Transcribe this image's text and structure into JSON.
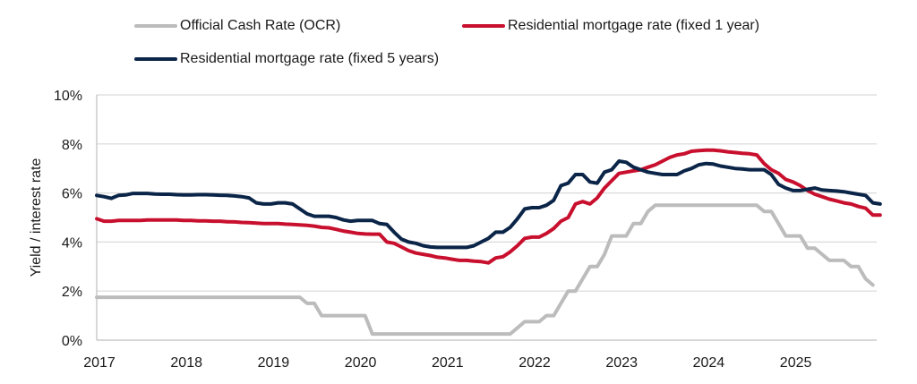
{
  "chart_data": {
    "type": "line",
    "title": "",
    "xlabel": "",
    "ylabel": "Yield / interest rate",
    "ylim": [
      0,
      10
    ],
    "yticks": [
      "0%",
      "2%",
      "4%",
      "6%",
      "8%",
      "10%"
    ],
    "ytick_values": [
      0,
      2,
      4,
      6,
      8,
      10
    ],
    "xlim": [
      2017.0,
      2025.95
    ],
    "xticks": [
      "2017",
      "2018",
      "2019",
      "2020",
      "2021",
      "2022",
      "2023",
      "2024",
      "2025"
    ],
    "xtick_values": [
      2017,
      2018,
      2019,
      2020,
      2021,
      2022,
      2023,
      2024,
      2025
    ],
    "grid": "horizontal",
    "legend_position": "top",
    "x_start": 2017.0,
    "x_step_months": 1,
    "series": [
      {
        "name": "Official Cash Rate (OCR)",
        "color": "#bcbcbc",
        "values": [
          1.75,
          1.75,
          1.75,
          1.75,
          1.75,
          1.75,
          1.75,
          1.75,
          1.75,
          1.75,
          1.75,
          1.75,
          1.75,
          1.75,
          1.75,
          1.75,
          1.75,
          1.75,
          1.75,
          1.75,
          1.75,
          1.75,
          1.75,
          1.75,
          1.75,
          1.75,
          1.75,
          1.75,
          1.75,
          1.5,
          1.5,
          1.0,
          1.0,
          1.0,
          1.0,
          1.0,
          1.0,
          1.0,
          0.25,
          0.25,
          0.25,
          0.25,
          0.25,
          0.25,
          0.25,
          0.25,
          0.25,
          0.25,
          0.25,
          0.25,
          0.25,
          0.25,
          0.25,
          0.25,
          0.25,
          0.25,
          0.25,
          0.25,
          0.5,
          0.75,
          0.75,
          0.75,
          1.0,
          1.0,
          1.5,
          2.0,
          2.0,
          2.5,
          3.0,
          3.0,
          3.5,
          4.25,
          4.25,
          4.25,
          4.75,
          4.75,
          5.25,
          5.5,
          5.5,
          5.5,
          5.5,
          5.5,
          5.5,
          5.5,
          5.5,
          5.5,
          5.5,
          5.5,
          5.5,
          5.5,
          5.5,
          5.5,
          5.25,
          5.25,
          4.75,
          4.25,
          4.25,
          4.25,
          3.75,
          3.75,
          3.5,
          3.25,
          3.25,
          3.25,
          3.0,
          3.0,
          2.5,
          2.25
        ]
      },
      {
        "name": "Residential mortgage rate (fixed 1 year)",
        "color": "#c8102e",
        "values": [
          4.95,
          4.85,
          4.85,
          4.88,
          4.88,
          4.88,
          4.88,
          4.9,
          4.9,
          4.9,
          4.9,
          4.9,
          4.88,
          4.88,
          4.86,
          4.86,
          4.85,
          4.85,
          4.83,
          4.82,
          4.8,
          4.79,
          4.77,
          4.75,
          4.75,
          4.75,
          4.73,
          4.72,
          4.7,
          4.68,
          4.65,
          4.6,
          4.58,
          4.52,
          4.45,
          4.4,
          4.35,
          4.33,
          4.32,
          4.32,
          4.0,
          3.95,
          3.8,
          3.65,
          3.55,
          3.5,
          3.45,
          3.38,
          3.35,
          3.3,
          3.25,
          3.25,
          3.22,
          3.2,
          3.15,
          3.35,
          3.4,
          3.6,
          3.85,
          4.15,
          4.2,
          4.2,
          4.35,
          4.55,
          4.85,
          5.0,
          5.55,
          5.65,
          5.55,
          5.8,
          6.2,
          6.5,
          6.8,
          6.85,
          6.9,
          6.95,
          7.05,
          7.15,
          7.3,
          7.45,
          7.55,
          7.6,
          7.7,
          7.73,
          7.75,
          7.75,
          7.72,
          7.68,
          7.65,
          7.62,
          7.6,
          7.55,
          7.2,
          6.95,
          6.8,
          6.55,
          6.45,
          6.3,
          6.1,
          5.95,
          5.85,
          5.75,
          5.68,
          5.6,
          5.55,
          5.45,
          5.38,
          5.1,
          5.1
        ]
      },
      {
        "name": "Residential mortgage rate (fixed 5 years)",
        "color": "#0b2548",
        "values": [
          5.9,
          5.85,
          5.78,
          5.9,
          5.92,
          5.98,
          5.98,
          5.98,
          5.96,
          5.95,
          5.95,
          5.93,
          5.92,
          5.92,
          5.93,
          5.93,
          5.92,
          5.91,
          5.9,
          5.88,
          5.85,
          5.8,
          5.6,
          5.55,
          5.55,
          5.6,
          5.6,
          5.55,
          5.35,
          5.15,
          5.05,
          5.05,
          5.05,
          5.0,
          4.9,
          4.85,
          4.88,
          4.88,
          4.88,
          4.75,
          4.72,
          4.4,
          4.12,
          4.0,
          3.95,
          3.85,
          3.8,
          3.78,
          3.78,
          3.78,
          3.78,
          3.78,
          3.85,
          4.0,
          4.15,
          4.4,
          4.4,
          4.6,
          4.95,
          5.35,
          5.4,
          5.4,
          5.5,
          5.7,
          6.3,
          6.4,
          6.75,
          6.75,
          6.45,
          6.4,
          6.85,
          6.95,
          7.3,
          7.25,
          7.05,
          6.95,
          6.85,
          6.8,
          6.75,
          6.75,
          6.75,
          6.9,
          7.0,
          7.15,
          7.2,
          7.18,
          7.1,
          7.05,
          7.0,
          6.98,
          6.95,
          6.95,
          6.95,
          6.75,
          6.35,
          6.2,
          6.1,
          6.1,
          6.15,
          6.2,
          6.12,
          6.1,
          6.08,
          6.05,
          6.0,
          5.95,
          5.9,
          5.6,
          5.55
        ]
      }
    ]
  }
}
